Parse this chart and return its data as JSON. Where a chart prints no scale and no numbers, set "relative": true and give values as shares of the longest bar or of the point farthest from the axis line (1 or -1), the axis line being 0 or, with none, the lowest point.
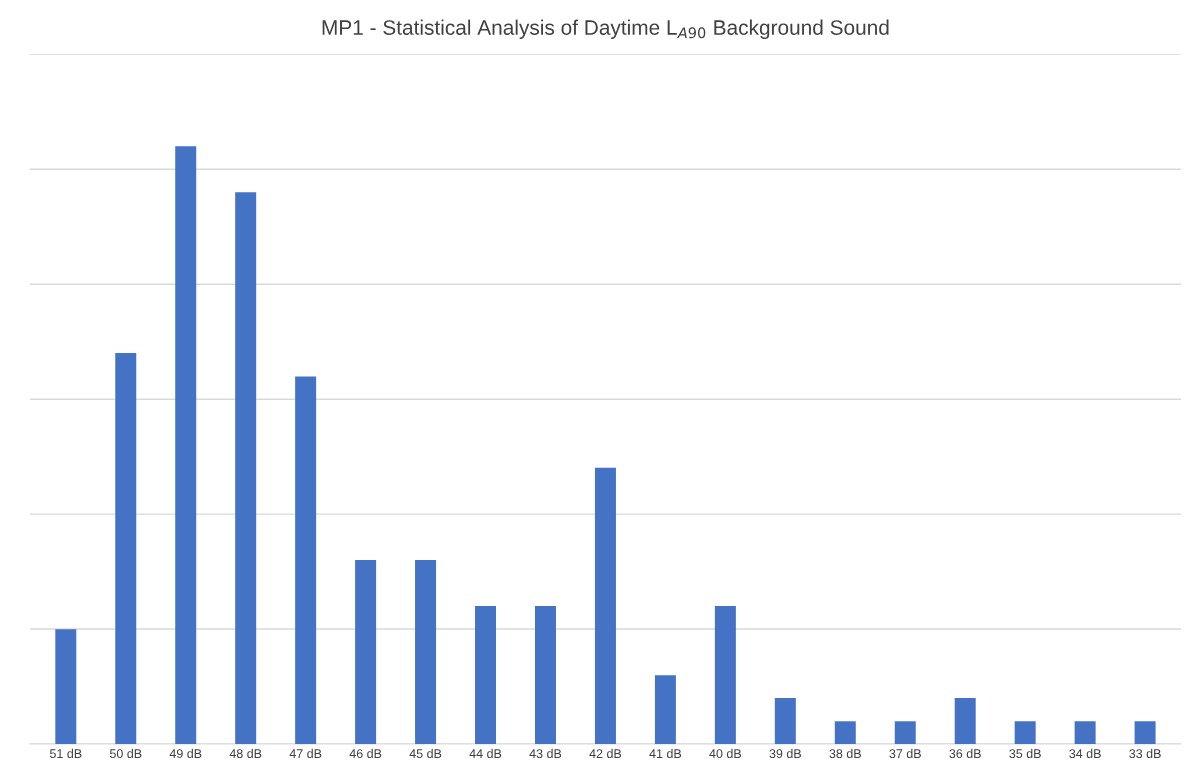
{
  "chart_data": {
    "type": "bar",
    "title": "MP1 - Statistical Analysis of Daytime L$_{A90}$ Background Sound",
    "categories": [
      "51 dB",
      "50 dB",
      "49 dB",
      "48 dB",
      "47 dB",
      "46 dB",
      "45 dB",
      "44 dB",
      "43 dB",
      "42 dB",
      "41 dB",
      "40 dB",
      "39 dB",
      "38 dB",
      "37 dB",
      "36 dB",
      "35 dB",
      "34 dB",
      "33 dB"
    ],
    "values": [
      0.192,
      0.654,
      1,
      0.923,
      0.615,
      0.308,
      0.308,
      0.231,
      0.231,
      0.462,
      0.115,
      0.231,
      0.077,
      0.038,
      0.038,
      0.077,
      0.038,
      0.038,
      0.038
    ],
    "color": "#4472c4",
    "relative": true,
    "grid": "y"
  }
}
